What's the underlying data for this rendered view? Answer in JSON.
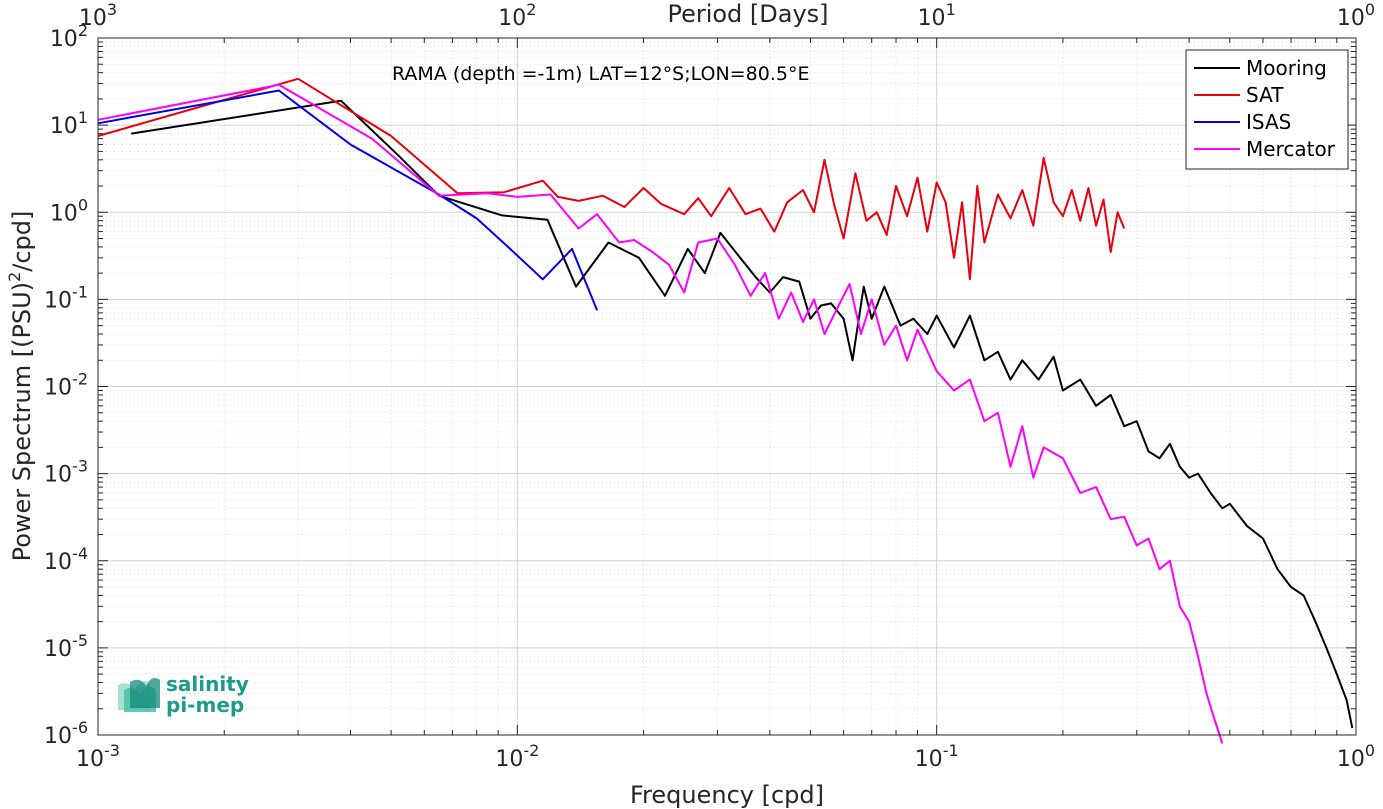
{
  "chart_data": {
    "type": "line",
    "annotation": "RAMA (depth =-1m) LAT=12°S;LON=80.5°E",
    "xlabel": "Frequency [cpd]",
    "ylabel_main": "Power Spectrum [(PSU)",
    "ylabel_sup": "2",
    "ylabel_tail": "/cpd]",
    "top_xlabel": "Period [Days]",
    "x_scale": "log",
    "y_scale": "log",
    "xlim": [
      0.001,
      1
    ],
    "ylim": [
      1e-06,
      100
    ],
    "grid": true,
    "legend_position": "top-right",
    "x_ticks": [
      {
        "value": 0.001,
        "base": "10",
        "exp": "-3"
      },
      {
        "value": 0.01,
        "base": "10",
        "exp": "-2"
      },
      {
        "value": 0.1,
        "base": "10",
        "exp": "-1"
      },
      {
        "value": 1,
        "base": "10",
        "exp": "0"
      }
    ],
    "top_ticks": [
      {
        "value": 0.001,
        "base": "10",
        "exp": "3"
      },
      {
        "value": 0.01,
        "base": "10",
        "exp": "2"
      },
      {
        "value": 0.1,
        "base": "10",
        "exp": "1"
      },
      {
        "value": 1,
        "base": "10",
        "exp": "0"
      }
    ],
    "y_ticks": [
      {
        "value": 100,
        "base": "10",
        "exp": "2"
      },
      {
        "value": 10,
        "base": "10",
        "exp": "1"
      },
      {
        "value": 1,
        "base": "10",
        "exp": "0"
      },
      {
        "value": 0.1,
        "base": "10",
        "exp": "-1"
      },
      {
        "value": 0.01,
        "base": "10",
        "exp": "-2"
      },
      {
        "value": 0.001,
        "base": "10",
        "exp": "-3"
      },
      {
        "value": 0.0001,
        "base": "10",
        "exp": "-4"
      },
      {
        "value": 1e-05,
        "base": "10",
        "exp": "-5"
      },
      {
        "value": 1e-06,
        "base": "10",
        "exp": "-6"
      }
    ],
    "series": [
      {
        "name": "Mooring",
        "color": "#000000",
        "points": [
          [
            0.0012,
            8
          ],
          [
            0.0038,
            19
          ],
          [
            0.0052,
            4.5
          ],
          [
            0.0065,
            1.55
          ],
          [
            0.0092,
            0.92
          ],
          [
            0.0118,
            0.82
          ],
          [
            0.0138,
            0.14
          ],
          [
            0.0165,
            0.45
          ],
          [
            0.0195,
            0.3
          ],
          [
            0.0225,
            0.11
          ],
          [
            0.0255,
            0.38
          ],
          [
            0.028,
            0.2
          ],
          [
            0.0305,
            0.58
          ],
          [
            0.034,
            0.3
          ],
          [
            0.037,
            0.18
          ],
          [
            0.04,
            0.12
          ],
          [
            0.043,
            0.18
          ],
          [
            0.047,
            0.16
          ],
          [
            0.05,
            0.06
          ],
          [
            0.053,
            0.085
          ],
          [
            0.056,
            0.09
          ],
          [
            0.06,
            0.06
          ],
          [
            0.063,
            0.02
          ],
          [
            0.067,
            0.14
          ],
          [
            0.07,
            0.06
          ],
          [
            0.075,
            0.14
          ],
          [
            0.082,
            0.05
          ],
          [
            0.088,
            0.06
          ],
          [
            0.095,
            0.04
          ],
          [
            0.1,
            0.065
          ],
          [
            0.11,
            0.028
          ],
          [
            0.12,
            0.065
          ],
          [
            0.13,
            0.02
          ],
          [
            0.14,
            0.025
          ],
          [
            0.15,
            0.012
          ],
          [
            0.16,
            0.02
          ],
          [
            0.175,
            0.012
          ],
          [
            0.19,
            0.022
          ],
          [
            0.2,
            0.009
          ],
          [
            0.22,
            0.012
          ],
          [
            0.24,
            0.006
          ],
          [
            0.26,
            0.008
          ],
          [
            0.28,
            0.0035
          ],
          [
            0.3,
            0.004
          ],
          [
            0.32,
            0.0018
          ],
          [
            0.34,
            0.0015
          ],
          [
            0.36,
            0.0022
          ],
          [
            0.38,
            0.0012
          ],
          [
            0.4,
            0.0009
          ],
          [
            0.42,
            0.001
          ],
          [
            0.45,
            0.0006
          ],
          [
            0.48,
            0.0004
          ],
          [
            0.5,
            0.00045
          ],
          [
            0.55,
            0.00025
          ],
          [
            0.6,
            0.00018
          ],
          [
            0.65,
            8e-05
          ],
          [
            0.7,
            5e-05
          ],
          [
            0.75,
            4e-05
          ],
          [
            0.8,
            2e-05
          ],
          [
            0.85,
            1e-05
          ],
          [
            0.9,
            5e-06
          ],
          [
            0.95,
            2.5e-06
          ],
          [
            0.98,
            1.2e-06
          ]
        ]
      },
      {
        "name": "SAT",
        "color": "#e8000b",
        "points": [
          [
            0.001,
            7.5
          ],
          [
            0.003,
            34
          ],
          [
            0.005,
            7.5
          ],
          [
            0.0072,
            1.65
          ],
          [
            0.0093,
            1.7
          ],
          [
            0.0115,
            2.3
          ],
          [
            0.0125,
            1.5
          ],
          [
            0.014,
            1.35
          ],
          [
            0.016,
            1.55
          ],
          [
            0.018,
            1.15
          ],
          [
            0.02,
            1.9
          ],
          [
            0.022,
            1.25
          ],
          [
            0.025,
            0.95
          ],
          [
            0.027,
            1.45
          ],
          [
            0.029,
            0.9
          ],
          [
            0.032,
            1.9
          ],
          [
            0.035,
            0.95
          ],
          [
            0.038,
            1.1
          ],
          [
            0.041,
            0.6
          ],
          [
            0.044,
            1.3
          ],
          [
            0.048,
            1.8
          ],
          [
            0.051,
            1.0
          ],
          [
            0.054,
            4.0
          ],
          [
            0.057,
            1.2
          ],
          [
            0.06,
            0.5
          ],
          [
            0.064,
            2.8
          ],
          [
            0.068,
            0.8
          ],
          [
            0.072,
            1.0
          ],
          [
            0.076,
            0.55
          ],
          [
            0.08,
            2.0
          ],
          [
            0.085,
            0.9
          ],
          [
            0.09,
            2.5
          ],
          [
            0.095,
            0.6
          ],
          [
            0.1,
            2.2
          ],
          [
            0.105,
            1.3
          ],
          [
            0.11,
            0.3
          ],
          [
            0.115,
            1.3
          ],
          [
            0.12,
            0.17
          ],
          [
            0.125,
            2.0
          ],
          [
            0.13,
            0.45
          ],
          [
            0.14,
            1.6
          ],
          [
            0.15,
            0.85
          ],
          [
            0.16,
            1.8
          ],
          [
            0.17,
            0.7
          ],
          [
            0.18,
            4.2
          ],
          [
            0.19,
            1.3
          ],
          [
            0.2,
            0.9
          ],
          [
            0.21,
            1.8
          ],
          [
            0.22,
            0.8
          ],
          [
            0.23,
            1.9
          ],
          [
            0.24,
            0.7
          ],
          [
            0.25,
            1.4
          ],
          [
            0.26,
            0.35
          ],
          [
            0.27,
            1.0
          ],
          [
            0.28,
            0.65
          ]
        ]
      },
      {
        "name": "ISAS",
        "color": "#0000e8",
        "points": [
          [
            0.001,
            10.5
          ],
          [
            0.0027,
            25
          ],
          [
            0.004,
            6
          ],
          [
            0.0065,
            1.6
          ],
          [
            0.008,
            0.85
          ],
          [
            0.0095,
            0.4
          ],
          [
            0.0115,
            0.17
          ],
          [
            0.0135,
            0.38
          ],
          [
            0.0155,
            0.075
          ]
        ]
      },
      {
        "name": "Mercator",
        "color": "#ff00ff",
        "points": [
          [
            0.001,
            11.5
          ],
          [
            0.0027,
            29
          ],
          [
            0.0045,
            7
          ],
          [
            0.0065,
            1.55
          ],
          [
            0.0085,
            1.65
          ],
          [
            0.01,
            1.5
          ],
          [
            0.012,
            1.6
          ],
          [
            0.014,
            0.65
          ],
          [
            0.0155,
            0.95
          ],
          [
            0.0175,
            0.45
          ],
          [
            0.019,
            0.48
          ],
          [
            0.021,
            0.35
          ],
          [
            0.023,
            0.25
          ],
          [
            0.025,
            0.12
          ],
          [
            0.027,
            0.45
          ],
          [
            0.03,
            0.5
          ],
          [
            0.033,
            0.25
          ],
          [
            0.036,
            0.11
          ],
          [
            0.039,
            0.2
          ],
          [
            0.042,
            0.06
          ],
          [
            0.045,
            0.12
          ],
          [
            0.048,
            0.055
          ],
          [
            0.051,
            0.1
          ],
          [
            0.054,
            0.04
          ],
          [
            0.058,
            0.08
          ],
          [
            0.062,
            0.15
          ],
          [
            0.066,
            0.04
          ],
          [
            0.07,
            0.1
          ],
          [
            0.075,
            0.03
          ],
          [
            0.08,
            0.05
          ],
          [
            0.085,
            0.02
          ],
          [
            0.09,
            0.045
          ],
          [
            0.1,
            0.015
          ],
          [
            0.11,
            0.009
          ],
          [
            0.12,
            0.012
          ],
          [
            0.13,
            0.004
          ],
          [
            0.14,
            0.005
          ],
          [
            0.15,
            0.0012
          ],
          [
            0.16,
            0.0035
          ],
          [
            0.17,
            0.0009
          ],
          [
            0.18,
            0.002
          ],
          [
            0.2,
            0.0015
          ],
          [
            0.22,
            0.0006
          ],
          [
            0.24,
            0.0007
          ],
          [
            0.26,
            0.0003
          ],
          [
            0.28,
            0.00032
          ],
          [
            0.3,
            0.00015
          ],
          [
            0.32,
            0.00018
          ],
          [
            0.34,
            8e-05
          ],
          [
            0.36,
            0.0001
          ],
          [
            0.38,
            3e-05
          ],
          [
            0.4,
            2e-05
          ],
          [
            0.42,
            8e-06
          ],
          [
            0.44,
            3e-06
          ],
          [
            0.46,
            1.5e-06
          ],
          [
            0.48,
            8e-07
          ]
        ]
      }
    ]
  },
  "logo": {
    "line1": "salinity",
    "line2": "pi-mep"
  }
}
